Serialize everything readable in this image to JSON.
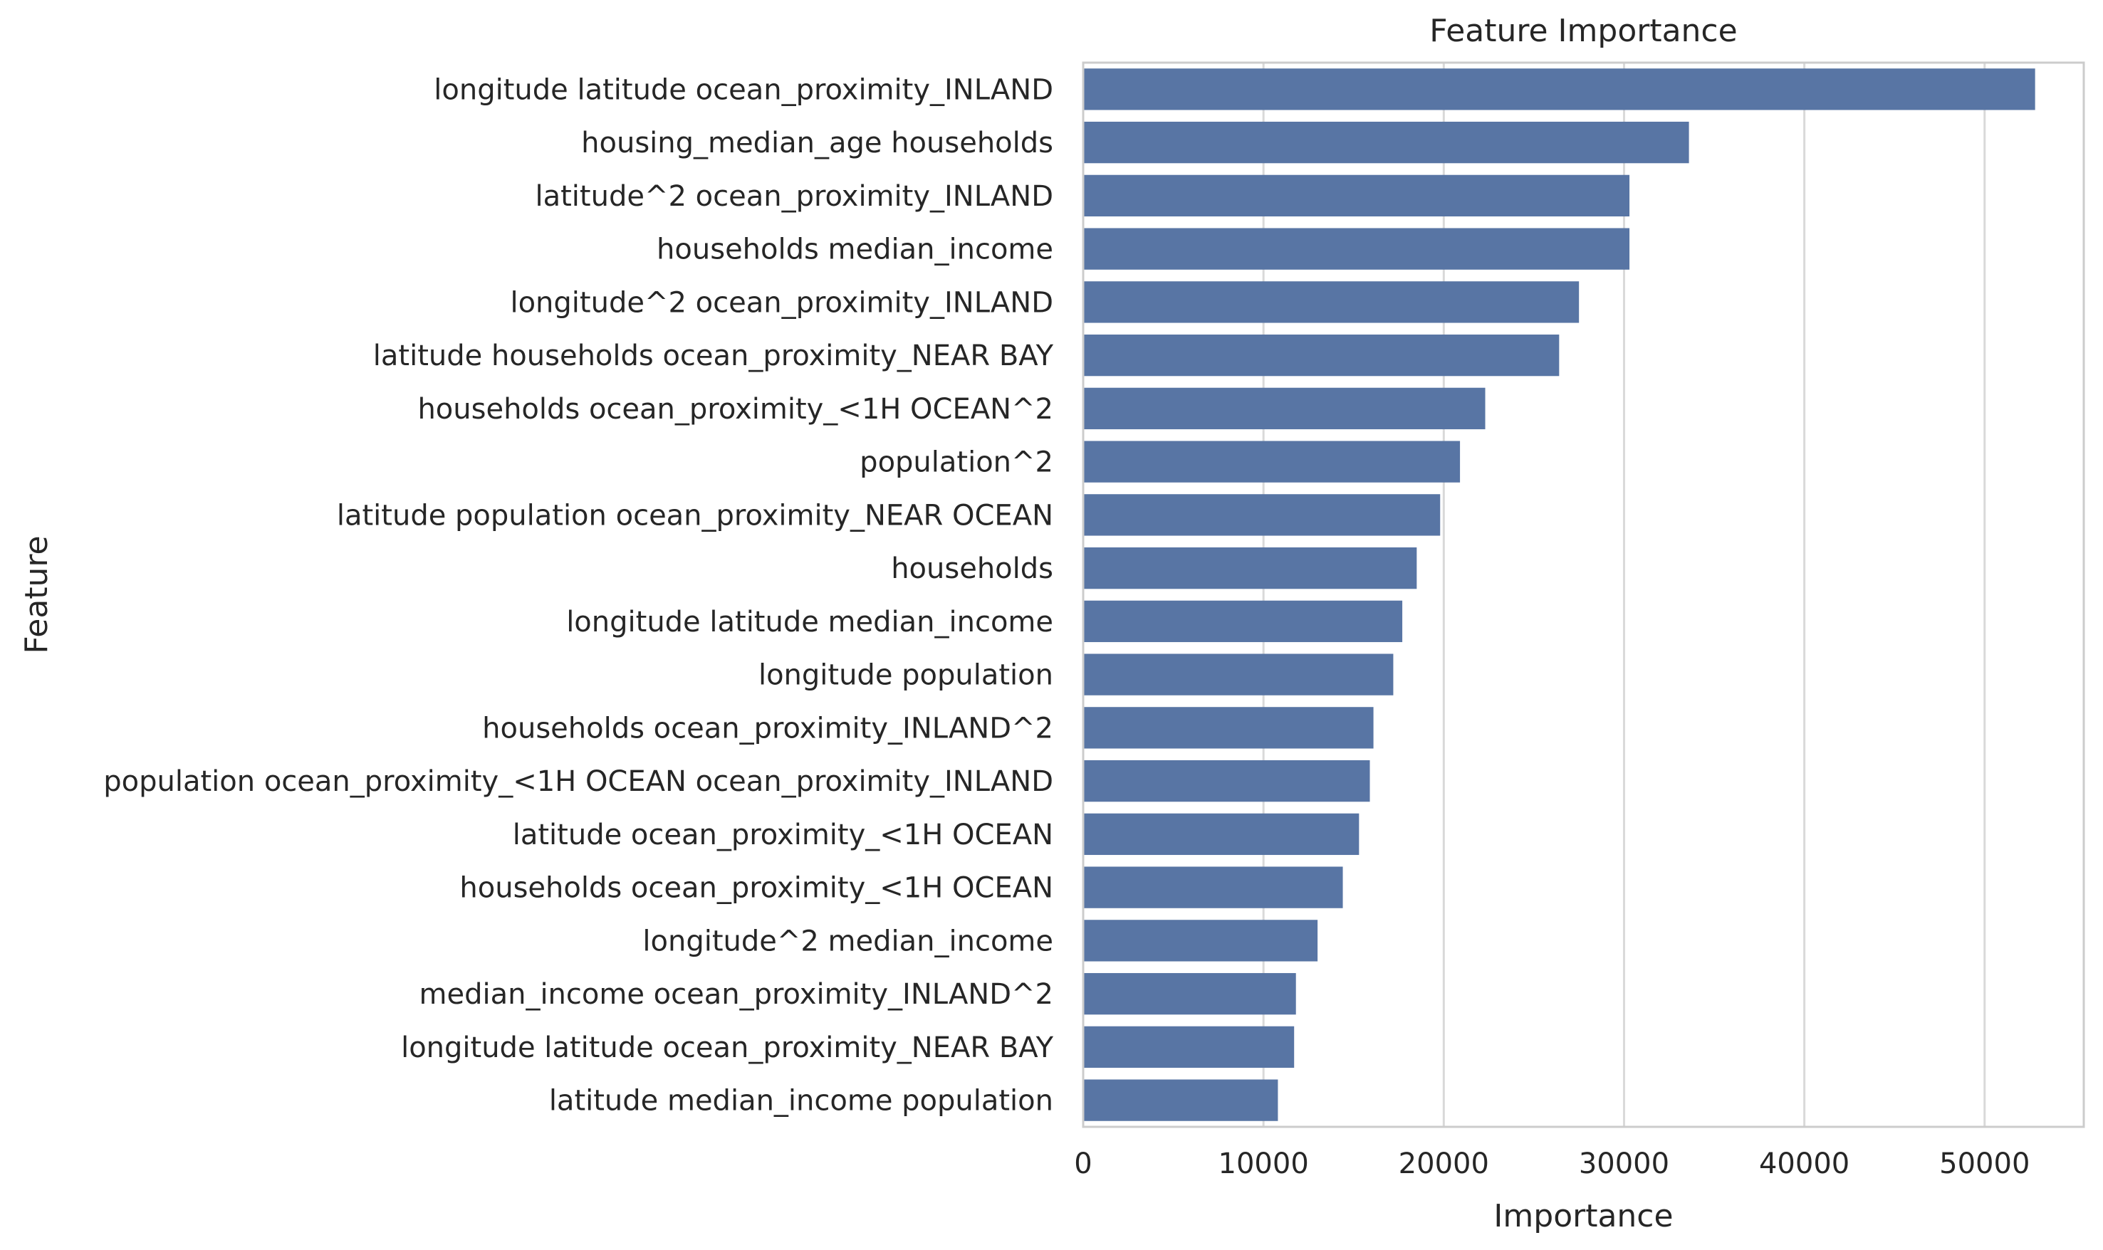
{
  "chart_data": {
    "type": "bar",
    "orientation": "horizontal",
    "title": "Feature Importance",
    "xlabel": "Importance",
    "ylabel": "Feature",
    "xlim": [
      0,
      55500
    ],
    "xticks": [
      0,
      10000,
      20000,
      30000,
      40000,
      50000
    ],
    "grid": "vertical",
    "legend": "none",
    "bar_color": "#5875a4",
    "categories": [
      "longitude latitude ocean_proximity_INLAND",
      "housing_median_age households",
      "latitude^2 ocean_proximity_INLAND",
      "households median_income",
      "longitude^2 ocean_proximity_INLAND",
      "latitude households ocean_proximity_NEAR BAY",
      "households ocean_proximity_<1H OCEAN^2",
      "population^2",
      "latitude population ocean_proximity_NEAR OCEAN",
      "households",
      "longitude latitude median_income",
      "longitude population",
      "households ocean_proximity_INLAND^2",
      "population ocean_proximity_<1H OCEAN ocean_proximity_INLAND",
      "latitude ocean_proximity_<1H OCEAN",
      "households ocean_proximity_<1H OCEAN",
      "longitude^2 median_income",
      "median_income ocean_proximity_INLAND^2",
      "longitude latitude ocean_proximity_NEAR BAY",
      "latitude median_income population"
    ],
    "values": [
      52800,
      33600,
      30300,
      30300,
      27500,
      26400,
      22300,
      20900,
      19800,
      18500,
      17700,
      17200,
      16100,
      15900,
      15300,
      14400,
      13000,
      11800,
      11700,
      10800
    ]
  }
}
